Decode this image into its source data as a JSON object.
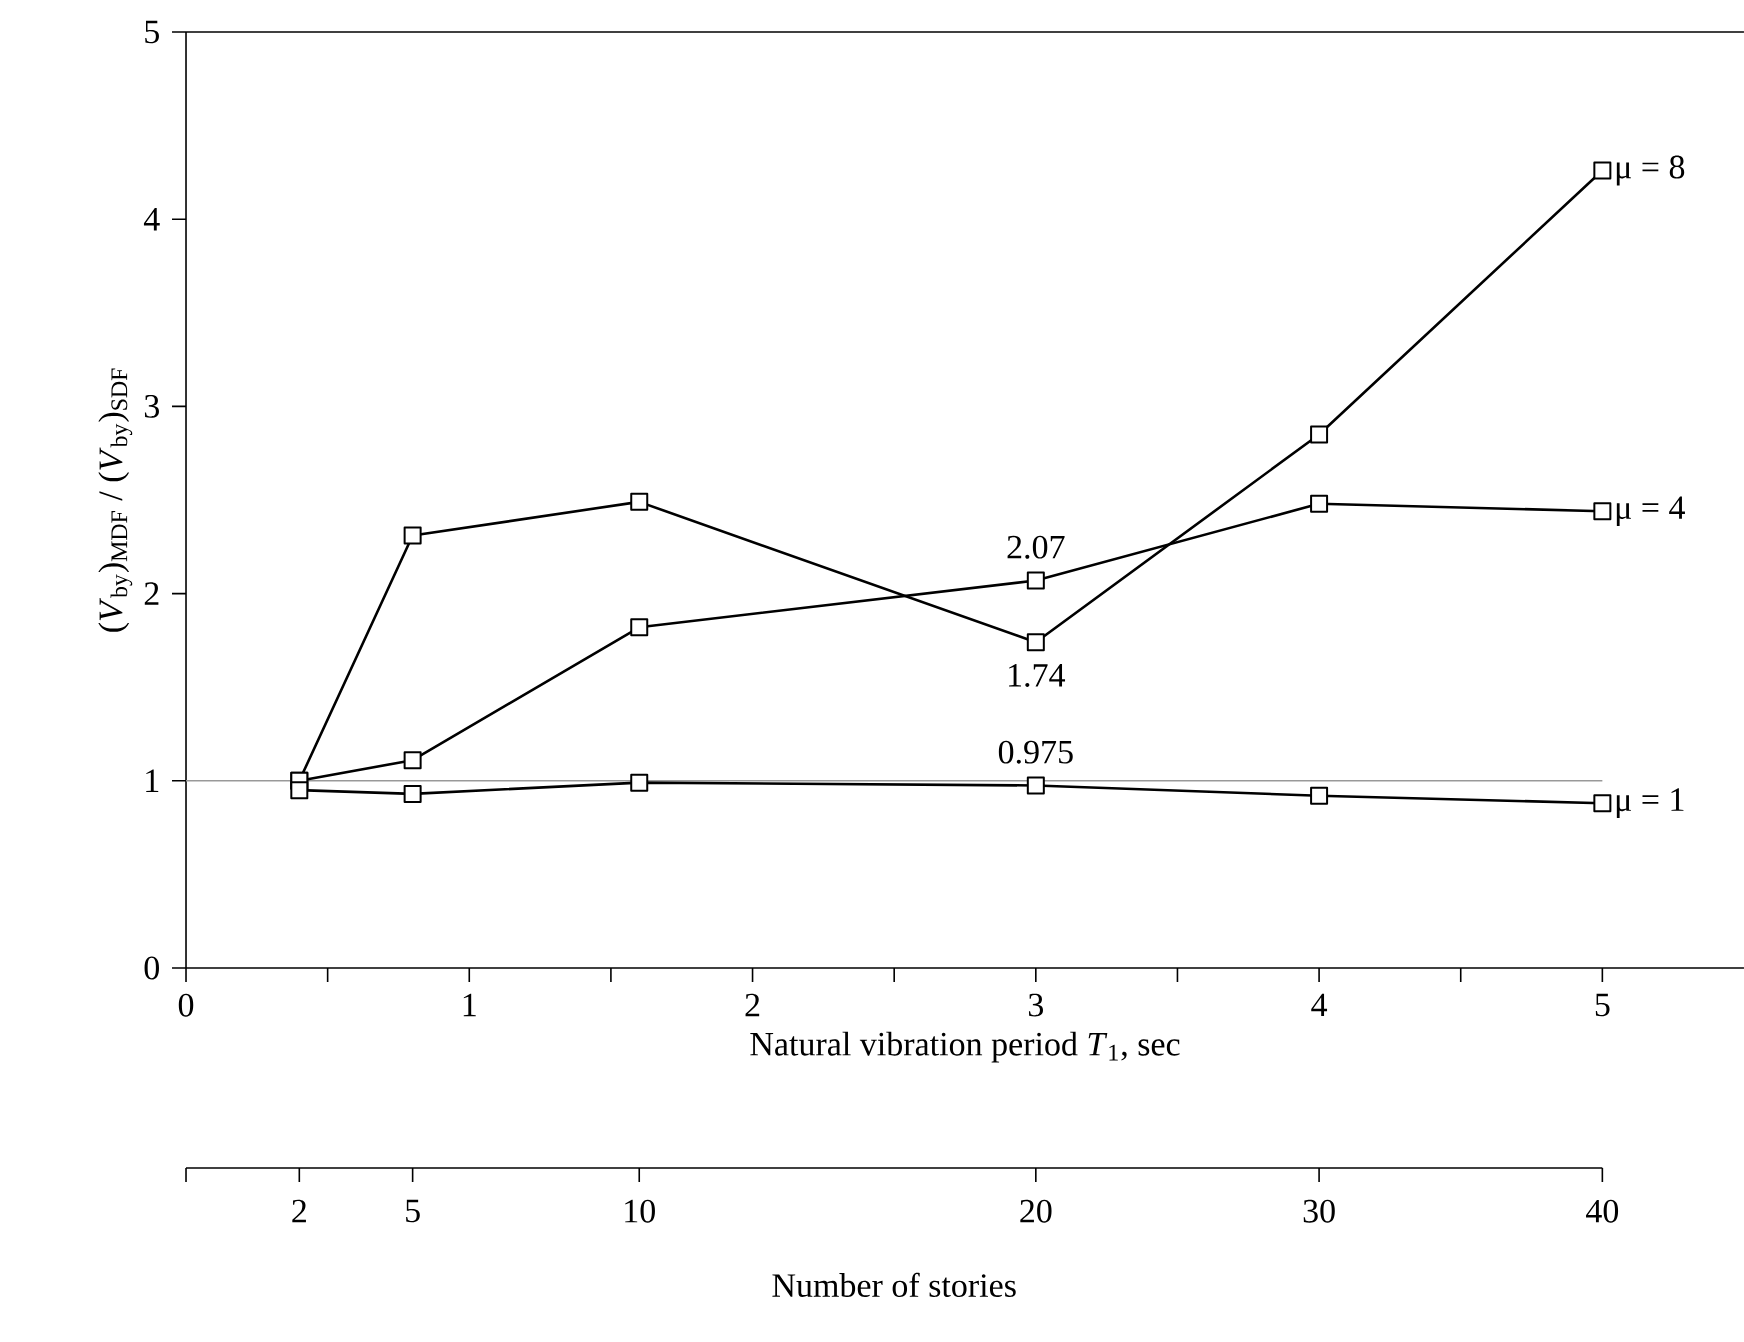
{
  "chart_data": {
    "type": "line",
    "xlabel": "Natural vibration period *T*$_{1}$, sec",
    "ylabel": "(*V*$_{by}$)$_{MDF}$ / (*V*$_{by}$)$_{SDF}$",
    "x2label": "Number of stories",
    "x": [
      0.4,
      0.8,
      1.6,
      3,
      4,
      5
    ],
    "series": [
      {
        "name": "μ = 8",
        "color": "#000000",
        "values": [
          1.0,
          2.31,
          2.49,
          1.74,
          2.85,
          4.26
        ]
      },
      {
        "name": "μ = 4",
        "color": "#000000",
        "values": [
          1.0,
          1.11,
          1.82,
          2.07,
          2.48,
          2.44
        ]
      },
      {
        "name": "μ = 1",
        "color": "#000000",
        "values": [
          0.95,
          0.93,
          0.99,
          0.975,
          0.92,
          0.88
        ]
      }
    ],
    "annotations": [
      {
        "text": "2.07",
        "x": 3,
        "y": 2.07
      },
      {
        "text": "1.74",
        "x": 3,
        "y": 1.74
      },
      {
        "text": "0.975",
        "x": 3,
        "y": 0.975
      },
      {
        "text": "2",
        "x": 0.4
      },
      {
        "text": "5",
        "x": 0.8
      },
      {
        "text": "10",
        "x": 1.6
      },
      {
        "text": "20",
        "x": 3
      },
      {
        "text": "30",
        "x": 4
      },
      {
        "text": "40",
        "x": 5
      }
    ],
    "ref_lines": [
      {
        "axis": "y",
        "value": 1,
        "color": "#999999"
      }
    ],
    "xlim": [
      0,
      5.5
    ],
    "ylim": [
      0,
      5
    ],
    "xticks": [
      0,
      {
        "value": 0.5,
        "label": null
      },
      1,
      {
        "value": 1.5,
        "label": null
      },
      2,
      {
        "value": 2.5,
        "label": null
      },
      3,
      {
        "value": 3.5,
        "label": null
      },
      4,
      {
        "value": 4.5,
        "label": null
      },
      5
    ],
    "yticks": [
      0,
      1,
      2,
      3,
      4,
      5
    ],
    "marker": "square",
    "line_style": "solid"
  }
}
